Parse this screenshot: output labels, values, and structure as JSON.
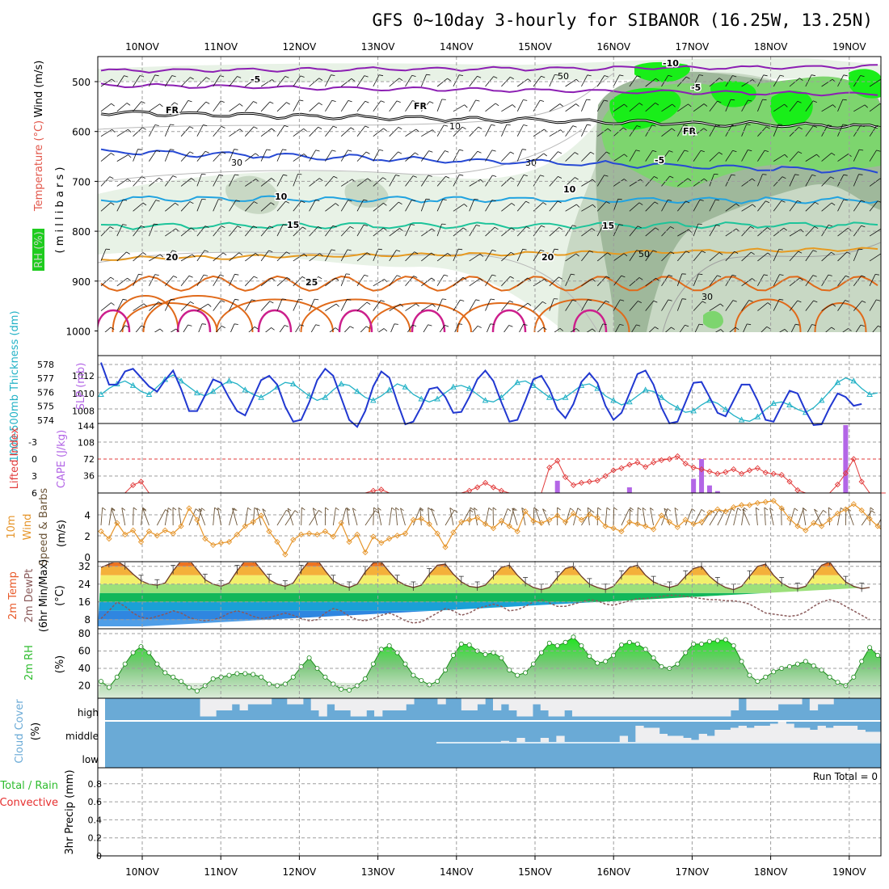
{
  "title": "GFS 0~10day 3-hourly for SIBANOR (16.25W, 13.25N)",
  "x_axis": {
    "dates": [
      "10NOV",
      "11NOV",
      "12NOV",
      "13NOV",
      "14NOV",
      "15NOV",
      "16NOV",
      "17NOV",
      "18NOV",
      "19NOV"
    ]
  },
  "colors": {
    "frame": "#000000",
    "grid": "#9e9e9e",
    "rh_light": "#e8f2e6",
    "rh_mid": "#c8d8c4",
    "rh_dark": "#9fb89b",
    "rh_green": "#7dd56e",
    "rh_bright": "#19ee19",
    "purple": "#8c1fb3",
    "blue": "#2649d4",
    "lightblue": "#21a3e0",
    "teal": "#1dc49a",
    "orange": "#e69a21",
    "darkorange": "#e06a1a",
    "magenta": "#cc1f8c",
    "thickness": "#23b2c6",
    "slp": "#2138d1",
    "lifted": "#e23b3b",
    "cape": "#b366e6",
    "wind": "#e6952a",
    "rh2m": "#2ebc2e",
    "cloud": "#6aaad6",
    "cloud_clear": "#eeeef0",
    "precip_green": "#2ebc2e",
    "precip_red": "#e62e2e"
  },
  "panels": {
    "upper": {
      "label_wind": "Wind (m/s)",
      "label_temp": "Temperature (°C)",
      "label_rh": "RH (%)",
      "label_pressure": "( m i l l i b a r s )",
      "y_ticks": [
        "500",
        "600",
        "700",
        "800",
        "900",
        "1000"
      ],
      "contour_labels": [
        {
          "text": "-10",
          "color": "purple"
        },
        {
          "text": "-5",
          "color": "purple"
        },
        {
          "text": "-5",
          "color": "purple"
        },
        {
          "text": "FR",
          "color": "frame"
        },
        {
          "text": "FR",
          "color": "frame"
        },
        {
          "text": "FR",
          "color": "frame"
        },
        {
          "text": "-5",
          "color": "blue"
        },
        {
          "text": "10",
          "color": "lightblue"
        },
        {
          "text": "10",
          "color": "lightblue"
        },
        {
          "text": "15",
          "color": "teal"
        },
        {
          "text": "15",
          "color": "teal"
        },
        {
          "text": "20",
          "color": "orange"
        },
        {
          "text": "20",
          "color": "orange"
        },
        {
          "text": "25",
          "color": "darkorange"
        },
        {
          "text": "50",
          "color": "grid"
        },
        {
          "text": "30",
          "color": "grid"
        },
        {
          "text": "10",
          "color": "grid"
        },
        {
          "text": "30",
          "color": "grid"
        },
        {
          "text": "50",
          "color": "grid"
        },
        {
          "text": "30",
          "color": "grid"
        }
      ]
    },
    "thickness_slp": {
      "label_thickness": "1000-500mb Thickness (dm)",
      "label_slp": "SLP (mb)",
      "left_ticks": [
        "578",
        "577",
        "576",
        "575",
        "574"
      ],
      "right_ticks": [
        "1012",
        "1010",
        "1008"
      ]
    },
    "stability": {
      "label_li": "Lifted Index",
      "label_cape": "CAPE (J/kg)",
      "left_ticks": [
        "-3",
        "0",
        "3",
        "6"
      ],
      "right_ticks": [
        "144",
        "108",
        "72",
        "36"
      ]
    },
    "wind10m": {
      "label": "10m Wind Speed & Barbs",
      "unit": "(m/s)",
      "y_ticks": [
        "4",
        "2",
        "0"
      ]
    },
    "temp2m": {
      "label": "2m Temp",
      "label2": "2m DewPt",
      "label3": "(6hr Min/Max)",
      "unit": "(°C)",
      "y_ticks": [
        "32",
        "24",
        "16",
        "8"
      ]
    },
    "rh2m": {
      "label": "2m RH",
      "unit": "(%)",
      "y_ticks": [
        "80",
        "60",
        "40",
        "20"
      ]
    },
    "cloud": {
      "label": "Cloud Cover",
      "unit": "(%)",
      "levels": [
        "high",
        "middle",
        "low"
      ]
    },
    "precip": {
      "label": "3hr Precip (mm)",
      "label_total": "Total / Rain",
      "label_conv": "Convective",
      "run_total": "Run Total = 0",
      "y_ticks": [
        "0.8",
        "0.6",
        "0.4",
        "0.2",
        "0"
      ]
    }
  },
  "chart_data": [
    {
      "type": "line",
      "title": "1000-500mb Thickness (dm)",
      "ylim": [
        574,
        578.5
      ],
      "y": [
        576.0,
        576.4,
        576.7,
        576.9,
        576.6,
        576.2,
        576.0,
        576.5,
        577.0,
        577.3,
        576.9,
        576.5,
        576.1,
        575.9,
        576.2,
        576.6,
        576.9,
        576.7,
        576.3,
        576.0,
        575.8,
        576.1,
        576.5,
        576.8,
        576.7,
        576.3,
        575.9,
        575.6,
        575.8,
        576.3,
        576.7,
        576.6,
        576.2,
        575.8,
        575.6,
        575.9,
        576.3,
        576.7,
        576.5,
        576.0,
        575.7,
        575.5,
        575.7,
        576.1,
        576.5,
        576.6,
        576.4,
        576.0,
        575.6,
        575.5,
        575.8,
        576.3,
        576.8,
        576.9,
        576.6,
        576.2,
        575.8,
        575.6,
        575.8,
        576.2,
        576.6,
        576.7,
        576.4,
        575.9,
        575.6,
        575.3,
        575.5,
        575.9,
        576.3,
        576.2,
        575.8,
        575.4,
        575.1,
        574.8,
        574.9,
        575.3,
        575.6,
        575.4,
        575.0,
        574.6,
        574.3,
        574.2,
        574.5,
        575.0,
        575.4,
        575.5,
        575.3,
        575.0,
        574.8,
        575.1,
        575.6,
        576.2,
        576.8,
        577.1,
        576.9,
        576.4,
        576.0,
        576.1
      ]
    },
    {
      "type": "line",
      "title": "SLP (mb)",
      "ylim": [
        1006,
        1014
      ],
      "y": [
        1013.5,
        1011.0,
        1011.0,
        1012.5,
        1012.8,
        1011.8,
        1010.8,
        1010.2,
        1011.5,
        1012.6,
        1010.5,
        1008.0,
        1008.0,
        1009.8,
        1011.6,
        1011.2,
        1009.5,
        1008.0,
        1007.5,
        1009.5,
        1011.5,
        1012.0,
        1011.0,
        1008.5,
        1006.8,
        1007.0,
        1009.0,
        1011.5,
        1012.8,
        1012.0,
        1009.5,
        1007.0,
        1006.2,
        1008.0,
        1010.8,
        1012.5,
        1011.8,
        1009.0,
        1006.5,
        1006.8,
        1008.5,
        1010.5,
        1010.7,
        1009.6,
        1007.8,
        1007.9,
        1009.6,
        1011.6,
        1012.6,
        1011.4,
        1009.0,
        1006.8,
        1007.0,
        1009.2,
        1011.6,
        1012.0,
        1010.5,
        1008.2,
        1007.2,
        1008.8,
        1011.3,
        1012.3,
        1011.2,
        1008.6,
        1007.0,
        1007.8,
        1010.0,
        1012.2,
        1012.6,
        1011.0,
        1008.4,
        1006.6,
        1006.8,
        1009.0,
        1011.2,
        1011.3,
        1009.6,
        1007.8,
        1007.4,
        1009.2,
        1011.0,
        1011.0,
        1009.2,
        1007.0,
        1006.8,
        1008.6,
        1010.3,
        1010.0,
        1008.0,
        1006.4,
        1006.5,
        1008.4,
        1010.0,
        1009.6,
        1008.6,
        1008.8
      ]
    },
    {
      "type": "line",
      "title": "Lifted Index",
      "ylim": [
        6,
        -6
      ],
      "y": [
        6,
        6,
        6,
        6,
        4.6,
        4.0,
        6,
        6,
        6,
        6,
        6,
        6,
        6,
        6,
        6,
        6,
        6,
        6,
        6,
        6,
        6,
        6,
        6,
        6,
        6,
        6,
        6,
        6,
        6,
        6,
        6,
        6,
        6,
        6,
        5.6,
        5.4,
        6,
        6,
        6,
        6,
        6,
        6,
        6,
        6,
        6,
        6,
        5.6,
        5.0,
        4.2,
        5.0,
        5.6,
        6,
        6,
        6,
        6,
        6,
        1.5,
        0.3,
        3.2,
        4.6,
        4.2,
        4.0,
        3.8,
        3.0,
        2.0,
        1.6,
        1.0,
        0.6,
        1.4,
        0.6,
        0.2,
        0.0,
        -0.5,
        0.8,
        1.5,
        1.8,
        2.2,
        2.6,
        2.3,
        1.8,
        2.6,
        2.0,
        1.6,
        2.4,
        2.6,
        2.8,
        4.0,
        5.5,
        6,
        6,
        6,
        6,
        4.5,
        2.5,
        0.0,
        4.0,
        6,
        6,
        6
      ]
    },
    {
      "type": "bar",
      "title": "CAPE (J/kg)",
      "ylim": [
        0,
        144
      ],
      "bars": [
        {
          "x_index": 57,
          "value": 26
        },
        {
          "x_index": 66,
          "value": 12
        },
        {
          "x_index": 74,
          "value": 30
        },
        {
          "x_index": 75,
          "value": 72
        },
        {
          "x_index": 76,
          "value": 16
        },
        {
          "x_index": 77,
          "value": 4
        },
        {
          "x_index": 93,
          "value": 144
        }
      ]
    },
    {
      "type": "line",
      "title": "10m Wind Speed",
      "ylim": [
        0,
        5.4
      ],
      "y": [
        2.5,
        1.8,
        3.3,
        2.2,
        2.6,
        1.5,
        2.5,
        2.1,
        2.6,
        2.3,
        3.0,
        4.7,
        3.6,
        1.8,
        1.2,
        1.4,
        1.5,
        2.2,
        3.0,
        3.4,
        4.0,
        2.5,
        1.5,
        0.3,
        1.7,
        2.2,
        2.3,
        2.2,
        2.5,
        2.0,
        3.3,
        1.5,
        2.2,
        0.5,
        2.0,
        1.4,
        1.8,
        2.1,
        2.3,
        3.6,
        3.7,
        3.2,
        2.3,
        1.0,
        2.4,
        3.4,
        3.6,
        3.8,
        3.2,
        2.8,
        3.5,
        3.0,
        2.5,
        4.4,
        3.5,
        3.3,
        3.6,
        4.0,
        3.4,
        4.2,
        3.6,
        4.1,
        3.8,
        3.0,
        2.8,
        2.5,
        3.4,
        3.2,
        3.0,
        2.7,
        4.0,
        3.4,
        2.9,
        3.6,
        3.2,
        3.4,
        4.3,
        4.6,
        4.4,
        4.8,
        5.0,
        5.0,
        5.2,
        5.3,
        5.4,
        4.7,
        3.7,
        3.0,
        2.6,
        3.3,
        3.0,
        3.6,
        4.2,
        4.6,
        5.1,
        4.5,
        3.7,
        3.0,
        2.3,
        3.3,
        2.9,
        3.4,
        3.7,
        2.8
      ]
    },
    {
      "type": "area",
      "title": "2m Temp",
      "ylim": [
        6,
        36
      ],
      "y": [
        31.5,
        33,
        34.5,
        32,
        28.5,
        25.5,
        24,
        23.5,
        24.5,
        30,
        34.5,
        35,
        30.5,
        26,
        24,
        23,
        24.5,
        30,
        34.5,
        35,
        30.5,
        26,
        24,
        23,
        24.5,
        30,
        34.5,
        35,
        30,
        25.5,
        23.5,
        22.5,
        24,
        29.5,
        33.5,
        34,
        29.5,
        25.5,
        23.5,
        22.5,
        23.5,
        28.5,
        32.5,
        33,
        28.5,
        25,
        23,
        22.5,
        23.5,
        27.5,
        31.5,
        32.5,
        28,
        24.5,
        22.5,
        21.5,
        22.5,
        27,
        31,
        32,
        27.5,
        24,
        22.5,
        21.5,
        23,
        27.5,
        31.5,
        32.5,
        28,
        25,
        23.5,
        22.5,
        23.5,
        27.5,
        31,
        32,
        27.5,
        24.5,
        22.5,
        21.5,
        23,
        27.5,
        32,
        33,
        28,
        24.5,
        22.5,
        22,
        23,
        28,
        32.5,
        34,
        29,
        25,
        23,
        22,
        22.5
      ]
    },
    {
      "type": "line",
      "title": "2m DewPt",
      "ylim": [
        6,
        36
      ],
      "y": [
        8.5,
        12,
        16,
        14,
        11,
        9,
        8.5,
        9.5,
        10.5,
        12,
        11,
        9,
        8,
        7.5,
        8,
        9,
        11,
        12,
        11,
        9.5,
        8.5,
        9,
        10,
        11,
        10,
        8.5,
        7.5,
        8,
        11,
        13,
        12,
        9.5,
        8,
        7.5,
        8.5,
        10,
        11,
        9.5,
        7.5,
        6.5,
        7,
        9,
        11,
        13,
        12,
        10,
        11,
        13,
        14,
        15,
        14,
        12,
        12.5,
        14,
        16,
        17,
        15.5,
        14,
        14,
        15,
        16,
        17,
        16.5,
        15,
        14.5,
        15.5,
        16.5,
        17.5,
        17.5,
        18,
        18.5,
        19,
        19,
        18.5,
        18,
        17.5,
        17,
        17,
        16.5,
        16.5,
        16,
        15,
        13,
        11,
        10.5,
        10,
        9.5,
        10,
        11.5,
        14,
        16,
        17,
        16,
        14,
        12,
        10,
        8
      ]
    },
    {
      "type": "area",
      "title": "2m RH",
      "ylim": [
        10,
        85
      ],
      "y": [
        25,
        18,
        30,
        45,
        58,
        65,
        58,
        45,
        35,
        30,
        25,
        18,
        14,
        20,
        28,
        30,
        32,
        34,
        34,
        33,
        30,
        22,
        20,
        22,
        30,
        42,
        52,
        40,
        30,
        22,
        16,
        15,
        20,
        28,
        45,
        62,
        66,
        58,
        45,
        32,
        26,
        21,
        25,
        38,
        55,
        68,
        67,
        60,
        56,
        58,
        52,
        38,
        32,
        35,
        45,
        58,
        69,
        66,
        70,
        76,
        66,
        54,
        46,
        48,
        55,
        67,
        70,
        68,
        62,
        52,
        42,
        40,
        45,
        58,
        68,
        68,
        71,
        72,
        73,
        66,
        48,
        32,
        25,
        30,
        36,
        40,
        42,
        45,
        48,
        43,
        38,
        30,
        24,
        20,
        30,
        48,
        64,
        55,
        47,
        48
      ]
    },
    {
      "type": "bar",
      "title": "3hr Precip (mm)",
      "ylim": [
        0,
        0.9
      ],
      "values": []
    }
  ]
}
